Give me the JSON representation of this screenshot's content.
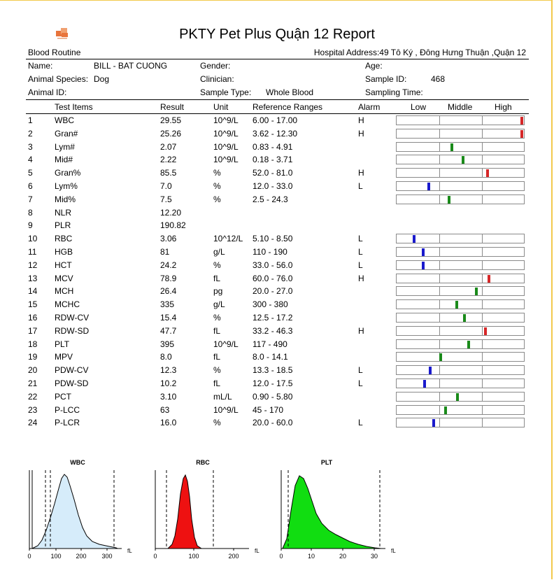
{
  "report": {
    "title": "PKTY Pet Plus Quận 12 Report",
    "section": "Blood Routine",
    "hospital_address": "Hospital Address:49 Tô Ký , Đông Hưng Thuận ,Quận 12"
  },
  "patient": {
    "name_label": "Name:",
    "name_value": "BILL - BAT CUONG",
    "gender_label": "Gender:",
    "age_label": "Age:",
    "species_label": "Animal Species:",
    "species_value": "Dog",
    "clinician_label": "Clinician:",
    "sample_id_label": "Sample ID:",
    "sample_id_value": "468",
    "animal_id_label": "Animal ID:",
    "sample_type_label": "Sample Type:",
    "sample_type_value": "Whole Blood",
    "sampling_time_label": "Sampling Time:"
  },
  "table": {
    "headers": {
      "test_items": "Test Items",
      "result": "Result",
      "unit": "Unit",
      "reference": "Reference Ranges",
      "alarm": "Alarm",
      "low": "Low",
      "middle": "Middle",
      "high": "High"
    },
    "rows": [
      {
        "no": "1",
        "item": "WBC",
        "result": "29.55",
        "unit": "10^9/L",
        "ref": "6.00 - 17.00",
        "alarm": "H",
        "level": 0.995,
        "color": "#d62728"
      },
      {
        "no": "2",
        "item": "Gran#",
        "result": "25.26",
        "unit": "10^9/L",
        "ref": "3.62 - 12.30",
        "alarm": "H",
        "level": 0.995,
        "color": "#d62728"
      },
      {
        "no": "3",
        "item": "Lym#",
        "result": "2.07",
        "unit": "10^9/L",
        "ref": "0.83 - 4.91",
        "alarm": "",
        "level": 0.43,
        "color": "#1a8a1a"
      },
      {
        "no": "4",
        "item": "Mid#",
        "result": "2.22",
        "unit": "10^9/L",
        "ref": "0.18 - 3.71",
        "alarm": "",
        "level": 0.52,
        "color": "#1a8a1a"
      },
      {
        "no": "5",
        "item": "Gran%",
        "result": "85.5",
        "unit": "%",
        "ref": "52.0 - 81.0",
        "alarm": "H",
        "level": 0.72,
        "color": "#d62728"
      },
      {
        "no": "6",
        "item": "Lym%",
        "result": "7.0",
        "unit": "%",
        "ref": "12.0 - 33.0",
        "alarm": "L",
        "level": 0.245,
        "color": "#1a1acc"
      },
      {
        "no": "7",
        "item": "Mid%",
        "result": "7.5",
        "unit": "%",
        "ref": "2.5 - 24.3",
        "alarm": "",
        "level": 0.41,
        "color": "#1a8a1a"
      },
      {
        "no": "8",
        "item": "NLR",
        "result": "12.20",
        "unit": "",
        "ref": "",
        "alarm": "",
        "level": null,
        "color": ""
      },
      {
        "no": "9",
        "item": "PLR",
        "result": "190.82",
        "unit": "",
        "ref": "",
        "alarm": "",
        "level": null,
        "color": ""
      },
      {
        "no": "10",
        "item": "RBC",
        "result": "3.06",
        "unit": "10^12/L",
        "ref": "5.10 - 8.50",
        "alarm": "L",
        "level": 0.13,
        "color": "#1a1acc"
      },
      {
        "no": "11",
        "item": "HGB",
        "result": "81",
        "unit": "g/L",
        "ref": "110 - 190",
        "alarm": "L",
        "level": 0.205,
        "color": "#1a1acc"
      },
      {
        "no": "12",
        "item": "HCT",
        "result": "24.2",
        "unit": "%",
        "ref": "33.0 - 56.0",
        "alarm": "L",
        "level": 0.2,
        "color": "#1a1acc"
      },
      {
        "no": "13",
        "item": "MCV",
        "result": "78.9",
        "unit": "fL",
        "ref": "60.0 - 76.0",
        "alarm": "H",
        "level": 0.73,
        "color": "#d62728"
      },
      {
        "no": "14",
        "item": "MCH",
        "result": "26.4",
        "unit": "pg",
        "ref": "20.0 - 27.0",
        "alarm": "",
        "level": 0.63,
        "color": "#1a8a1a"
      },
      {
        "no": "15",
        "item": "MCHC",
        "result": "335",
        "unit": "g/L",
        "ref": "300 - 380",
        "alarm": "",
        "level": 0.47,
        "color": "#1a8a1a"
      },
      {
        "no": "16",
        "item": "RDW-CV",
        "result": "15.4",
        "unit": "%",
        "ref": "12.5 - 17.2",
        "alarm": "",
        "level": 0.535,
        "color": "#1a8a1a"
      },
      {
        "no": "17",
        "item": "RDW-SD",
        "result": "47.7",
        "unit": "fL",
        "ref": "33.2 - 46.3",
        "alarm": "H",
        "level": 0.705,
        "color": "#d62728"
      },
      {
        "no": "18",
        "item": "PLT",
        "result": "395",
        "unit": "10^9/L",
        "ref": "117 - 490",
        "alarm": "",
        "level": 0.57,
        "color": "#1a8a1a"
      },
      {
        "no": "19",
        "item": "MPV",
        "result": "8.0",
        "unit": "fL",
        "ref": "8.0 - 14.1",
        "alarm": "",
        "level": 0.34,
        "color": "#1a8a1a"
      },
      {
        "no": "20",
        "item": "PDW-CV",
        "result": "12.3",
        "unit": "%",
        "ref": "13.3 - 18.5",
        "alarm": "L",
        "level": 0.26,
        "color": "#1a1acc"
      },
      {
        "no": "21",
        "item": "PDW-SD",
        "result": "10.2",
        "unit": "fL",
        "ref": "12.0 - 17.5",
        "alarm": "L",
        "level": 0.215,
        "color": "#1a1acc"
      },
      {
        "no": "22",
        "item": "PCT",
        "result": "3.10",
        "unit": "mL/L",
        "ref": "0.90 - 5.80",
        "alarm": "",
        "level": 0.475,
        "color": "#1a8a1a"
      },
      {
        "no": "23",
        "item": "P-LCC",
        "result": "63",
        "unit": "10^9/L",
        "ref": "45 - 170",
        "alarm": "",
        "level": 0.38,
        "color": "#1a8a1a"
      },
      {
        "no": "24",
        "item": "P-LCR",
        "result": "16.0",
        "unit": "%",
        "ref": "20.0 - 60.0",
        "alarm": "L",
        "level": 0.285,
        "color": "#1a1acc"
      }
    ]
  },
  "histograms": [
    {
      "title": "WBC",
      "unit": "fL",
      "ticks": [
        "0",
        "100",
        "200",
        "300"
      ],
      "fill": "#d6ecfa"
    },
    {
      "title": "RBC",
      "unit": "fL",
      "ticks": [
        "0",
        "100",
        "200"
      ],
      "fill": "#ee1111"
    },
    {
      "title": "PLT",
      "unit": "fL",
      "ticks": [
        "0",
        "10",
        "20",
        "30"
      ],
      "fill": "#11dd11"
    }
  ]
}
